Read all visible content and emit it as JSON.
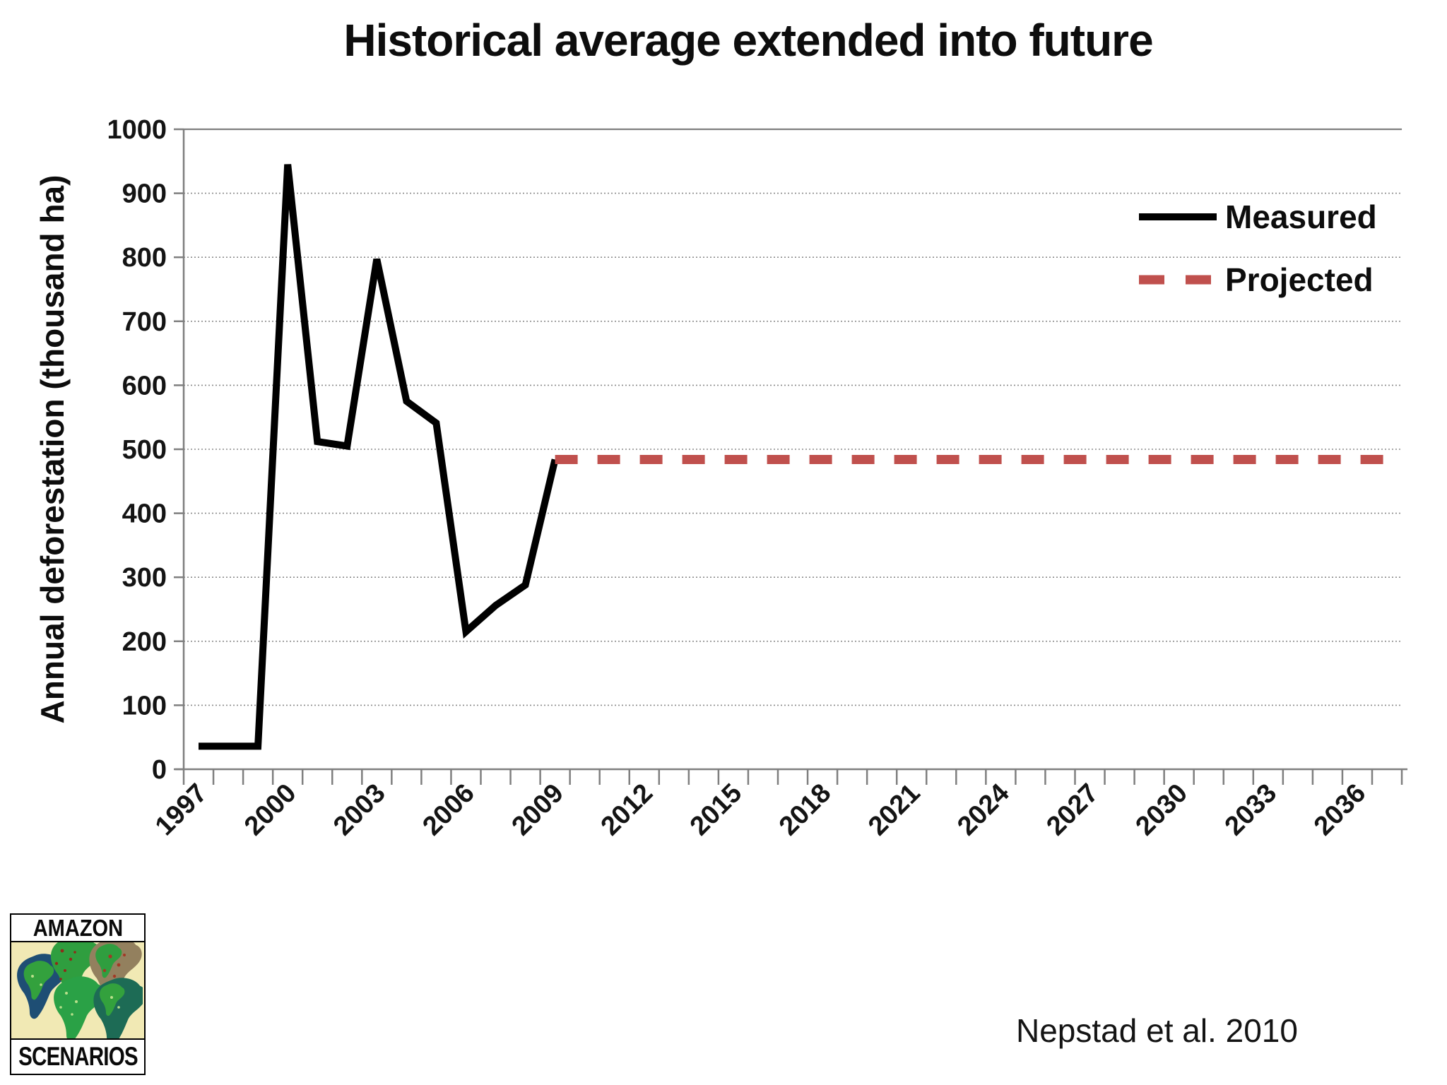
{
  "title": "Historical average extended into future",
  "citation": "Nepstad et al. 2010",
  "logo": {
    "top_text": "AMAZON",
    "bottom_text": "SCENARIOS"
  },
  "legend": [
    {
      "label": "Measured",
      "color": "#000000",
      "style": "solid"
    },
    {
      "label": "Projected",
      "color": "#C0504D",
      "style": "dashed"
    }
  ],
  "y_axis": {
    "label": "Annual deforestation (thousand ha)",
    "ticks": [
      1000,
      900,
      800,
      700,
      600,
      500,
      400,
      300,
      200,
      100,
      0
    ]
  },
  "x_axis": {
    "tick_years": [
      1997,
      2000,
      2003,
      2006,
      2009,
      2012,
      2015,
      2018,
      2021,
      2024,
      2027,
      2030,
      2033,
      2036
    ]
  },
  "chart_data": {
    "type": "line",
    "title": "Historical average extended into future",
    "xlabel": "",
    "ylabel": "Annual deforestation (thousand ha)",
    "ylim": [
      0,
      1000
    ],
    "x_range": [
      1997,
      2037
    ],
    "grid": true,
    "legend_position": "top-right",
    "series": [
      {
        "name": "Measured",
        "color": "#000000",
        "style": "solid",
        "x": [
          1997,
          1998,
          1999,
          2000,
          2001,
          2002,
          2003,
          2004,
          2005,
          2006,
          2007,
          2008,
          2009
        ],
        "values": [
          36,
          36,
          36,
          945,
          512,
          505,
          797,
          575,
          541,
          215,
          256,
          288,
          484
        ]
      },
      {
        "name": "Projected",
        "color": "#C0504D",
        "style": "dashed",
        "x": [
          2009,
          2037
        ],
        "values": [
          484,
          484
        ]
      }
    ]
  }
}
